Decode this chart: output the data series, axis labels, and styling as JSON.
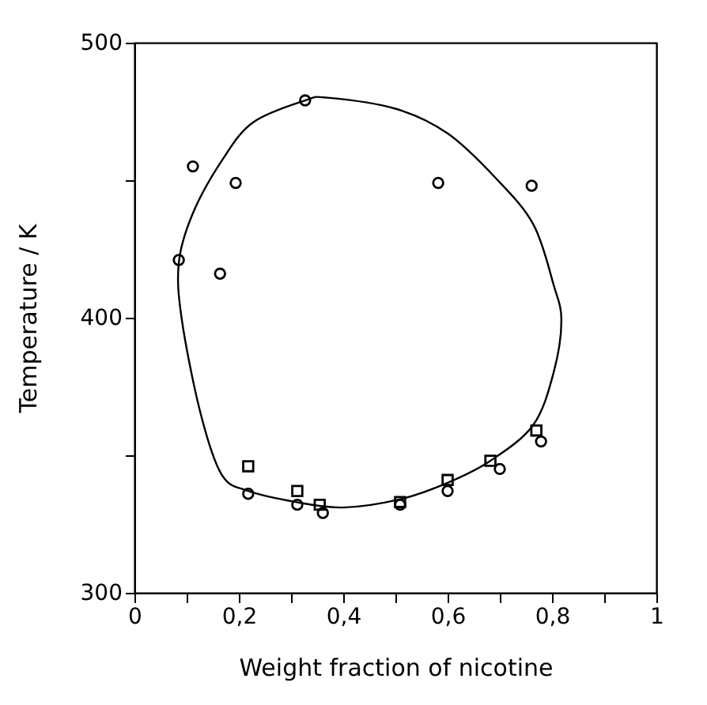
{
  "chart_data": {
    "type": "scatter",
    "xlabel": "Weight fraction of nicotine",
    "ylabel": "Temperature / K",
    "xlim": [
      0,
      1
    ],
    "ylim": [
      300,
      500
    ],
    "xticks": [
      0,
      {
        "value": 0.1,
        "label": null
      },
      {
        "value": 0.2,
        "label": "0,2"
      },
      {
        "value": 0.3,
        "label": null
      },
      {
        "value": 0.4,
        "label": "0,4"
      },
      {
        "value": 0.5,
        "label": null
      },
      {
        "value": 0.6,
        "label": "0,6"
      },
      {
        "value": 0.7,
        "label": null
      },
      {
        "value": 0.8,
        "label": "0,8"
      },
      {
        "value": 0.9,
        "label": null
      },
      1
    ],
    "yticks": [
      300,
      {
        "value": 350,
        "label": null
      },
      400,
      {
        "value": 450,
        "label": null
      },
      500
    ],
    "grid": false,
    "legend": false,
    "series": [
      {
        "type": "scatter",
        "color": "#000000",
        "marker": "circle",
        "x": [
          0.085,
          0.112,
          0.164,
          0.194,
          0.327,
          0.582,
          0.761
        ],
        "values": [
          421,
          455,
          416,
          449,
          479,
          449,
          448
        ]
      },
      {
        "type": "scatter",
        "color": "#000000",
        "marker": "square",
        "x": [
          0.218,
          0.312,
          0.355,
          0.509,
          0.6,
          0.682,
          0.77
        ],
        "values": [
          346,
          337,
          332,
          333,
          341,
          348,
          359
        ]
      },
      {
        "type": "scatter",
        "color": "#000000",
        "marker": "circle",
        "x": [
          0.218,
          0.312,
          0.361,
          0.509,
          0.6,
          0.7,
          0.779
        ],
        "values": [
          336,
          332,
          329,
          332,
          337,
          345,
          355
        ]
      }
    ]
  }
}
